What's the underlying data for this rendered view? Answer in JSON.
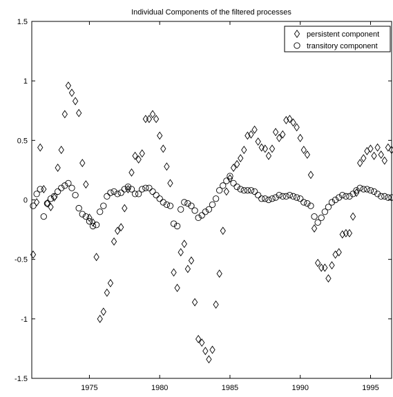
{
  "chart_data": {
    "type": "scatter",
    "title": "Individual Components of the filtered processes",
    "xlabel": "",
    "ylabel": "",
    "xlim": [
      1970.9,
      1996.5
    ],
    "ylim": [
      -1.5,
      1.5
    ],
    "xticks": [
      1975,
      1980,
      1985,
      1990,
      1995
    ],
    "yticks": [
      -1.5,
      -1,
      -0.5,
      0,
      0.5,
      1,
      1.5
    ],
    "xtick_labels": [
      "1975",
      "1980",
      "1985",
      "1990",
      "1995"
    ],
    "ytick_labels": [
      "-1.5",
      "-1",
      "-0.5",
      "0",
      "0.5",
      "1",
      "1.5"
    ],
    "grid": false,
    "legend_position": "top-right",
    "series": [
      {
        "name": "persistent component",
        "marker": "diamond",
        "x": [
          1971.0,
          1971.25,
          1971.5,
          1971.75,
          1972.0,
          1972.25,
          1972.5,
          1972.75,
          1973.0,
          1973.25,
          1973.5,
          1973.75,
          1974.0,
          1974.25,
          1974.5,
          1974.75,
          1975.0,
          1975.25,
          1975.5,
          1975.75,
          1976.0,
          1976.25,
          1976.5,
          1976.75,
          1977.0,
          1977.25,
          1977.5,
          1977.75,
          1978.0,
          1978.25,
          1978.5,
          1978.75,
          1979.0,
          1979.25,
          1979.5,
          1979.75,
          1980.0,
          1980.25,
          1980.5,
          1980.75,
          1981.0,
          1981.25,
          1981.5,
          1981.75,
          1982.0,
          1982.25,
          1982.5,
          1982.75,
          1983.0,
          1983.25,
          1983.5,
          1983.75,
          1984.0,
          1984.25,
          1984.5,
          1984.75,
          1985.0,
          1985.25,
          1985.5,
          1985.75,
          1986.0,
          1986.25,
          1986.5,
          1986.75,
          1987.0,
          1987.25,
          1987.5,
          1987.75,
          1988.0,
          1988.25,
          1988.5,
          1988.75,
          1989.0,
          1989.25,
          1989.5,
          1989.75,
          1990.0,
          1990.25,
          1990.5,
          1990.75,
          1991.0,
          1991.25,
          1991.5,
          1991.75,
          1992.0,
          1992.25,
          1992.5,
          1992.75,
          1993.0,
          1993.25,
          1993.5,
          1993.75,
          1994.0,
          1994.25,
          1994.5,
          1994.75,
          1995.0,
          1995.25,
          1995.5,
          1995.75,
          1996.0,
          1996.25,
          1996.5
        ],
        "y": [
          -0.46,
          -0.02,
          0.44,
          0.09,
          -0.03,
          -0.06,
          0.02,
          0.27,
          0.42,
          0.72,
          0.96,
          0.9,
          0.83,
          0.73,
          0.31,
          0.13,
          -0.15,
          -0.19,
          -0.48,
          -1.0,
          -0.94,
          -0.78,
          -0.7,
          -0.35,
          -0.26,
          -0.23,
          -0.07,
          0.09,
          0.23,
          0.37,
          0.34,
          0.39,
          0.68,
          0.68,
          0.72,
          0.68,
          0.54,
          0.43,
          0.28,
          0.14,
          -0.61,
          -0.74,
          -0.44,
          -0.37,
          -0.58,
          -0.51,
          -0.86,
          -1.17,
          -1.2,
          -1.27,
          -1.34,
          -1.26,
          -0.88,
          -0.62,
          -0.26,
          0.07,
          0.18,
          0.27,
          0.3,
          0.35,
          0.42,
          0.54,
          0.55,
          0.59,
          0.49,
          0.44,
          0.43,
          0.37,
          0.43,
          0.57,
          0.52,
          0.55,
          0.67,
          0.68,
          0.65,
          0.61,
          0.52,
          0.42,
          0.38,
          0.21,
          -0.24,
          -0.53,
          -0.57,
          -0.57,
          -0.66,
          -0.55,
          -0.46,
          -0.44,
          -0.29,
          -0.28,
          -0.28,
          -0.14,
          0.06,
          0.31,
          0.35,
          0.41,
          0.43,
          0.37,
          0.44,
          0.38,
          0.33,
          0.44,
          0.42
        ]
      },
      {
        "name": "transitory component",
        "marker": "circle",
        "x": [
          1971.0,
          1971.25,
          1971.5,
          1971.75,
          1972.0,
          1972.25,
          1972.5,
          1972.75,
          1973.0,
          1973.25,
          1973.5,
          1973.75,
          1974.0,
          1974.25,
          1974.5,
          1974.75,
          1975.0,
          1975.25,
          1975.5,
          1975.75,
          1976.0,
          1976.25,
          1976.5,
          1976.75,
          1977.0,
          1977.25,
          1977.5,
          1977.75,
          1978.0,
          1978.25,
          1978.5,
          1978.75,
          1979.0,
          1979.25,
          1979.5,
          1979.75,
          1980.0,
          1980.25,
          1980.5,
          1980.75,
          1981.0,
          1981.25,
          1981.5,
          1981.75,
          1982.0,
          1982.25,
          1982.5,
          1982.75,
          1983.0,
          1983.25,
          1983.5,
          1983.75,
          1984.0,
          1984.25,
          1984.5,
          1984.75,
          1985.0,
          1985.25,
          1985.5,
          1985.75,
          1986.0,
          1986.25,
          1986.5,
          1986.75,
          1987.0,
          1987.25,
          1987.5,
          1987.75,
          1988.0,
          1988.25,
          1988.5,
          1988.75,
          1989.0,
          1989.25,
          1989.5,
          1989.75,
          1990.0,
          1990.25,
          1990.5,
          1990.75,
          1991.0,
          1991.25,
          1991.5,
          1991.75,
          1992.0,
          1992.25,
          1992.5,
          1992.75,
          1993.0,
          1993.25,
          1993.5,
          1993.75,
          1994.0,
          1994.25,
          1994.5,
          1994.75,
          1995.0,
          1995.25,
          1995.5,
          1995.75,
          1996.0,
          1996.25,
          1996.5
        ],
        "y": [
          -0.05,
          0.05,
          0.09,
          -0.14,
          -0.03,
          0.01,
          0.03,
          0.07,
          0.1,
          0.12,
          0.14,
          0.1,
          0.04,
          -0.07,
          -0.12,
          -0.14,
          -0.18,
          -0.22,
          -0.21,
          -0.1,
          -0.05,
          0.03,
          0.06,
          0.07,
          0.05,
          0.06,
          0.09,
          0.11,
          0.09,
          0.05,
          0.05,
          0.09,
          0.1,
          0.1,
          0.07,
          0.04,
          0.01,
          -0.02,
          -0.04,
          -0.05,
          -0.2,
          -0.22,
          -0.08,
          -0.02,
          -0.03,
          -0.05,
          -0.09,
          -0.15,
          -0.13,
          -0.1,
          -0.08,
          -0.04,
          0.01,
          0.08,
          0.12,
          0.16,
          0.2,
          0.14,
          0.11,
          0.09,
          0.08,
          0.08,
          0.08,
          0.07,
          0.04,
          0.01,
          0.01,
          0.0,
          0.01,
          0.02,
          0.04,
          0.03,
          0.03,
          0.04,
          0.03,
          0.02,
          0.01,
          -0.02,
          -0.03,
          -0.05,
          -0.14,
          -0.19,
          -0.15,
          -0.1,
          -0.06,
          -0.02,
          0.0,
          0.02,
          0.04,
          0.03,
          0.03,
          0.05,
          0.08,
          0.1,
          0.09,
          0.09,
          0.08,
          0.07,
          0.05,
          0.03,
          0.03,
          0.02,
          0.02
        ]
      }
    ]
  }
}
